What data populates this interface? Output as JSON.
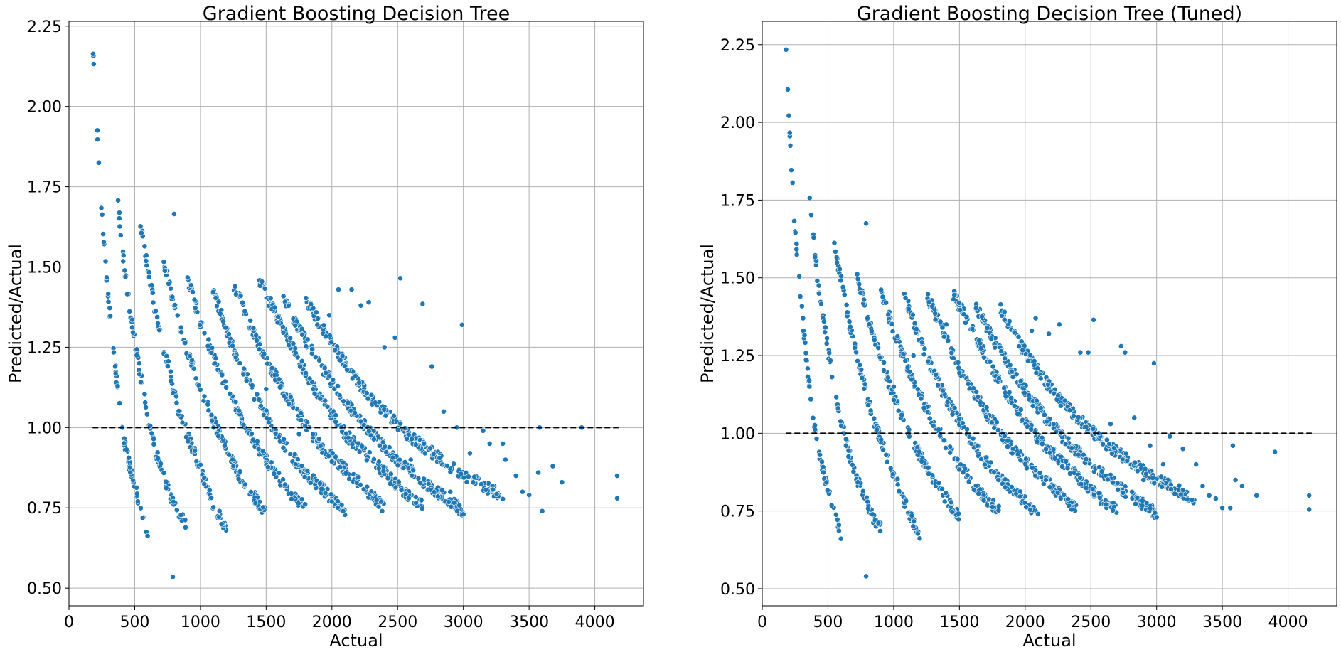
{
  "colors": {
    "point": "#1f77b4",
    "point_edge": "#ffffff",
    "grid": "#b0b0b0",
    "reference_line": "#000000"
  },
  "chart_data": [
    {
      "type": "scatter",
      "title": "Gradient Boosting Decision Tree",
      "xlabel": "Actual",
      "ylabel": "Predicted/Actual",
      "xlim": [
        0,
        4370
      ],
      "ylim": [
        0.445,
        2.265
      ],
      "xticks": [
        0,
        500,
        1000,
        1500,
        2000,
        2500,
        3000,
        3500,
        4000
      ],
      "xtick_labels": [
        "0",
        "500",
        "1000",
        "1500",
        "2000",
        "2500",
        "3000",
        "3500",
        "4000"
      ],
      "yticks": [
        0.5,
        0.75,
        1.0,
        1.25,
        1.5,
        1.75,
        2.0,
        2.25
      ],
      "ytick_labels": [
        "0.50",
        "0.75",
        "1.00",
        "1.25",
        "1.50",
        "1.75",
        "2.00",
        "2.25"
      ],
      "grid": true,
      "reference_line": {
        "style": "dashed",
        "x": [
          180,
          4180
        ],
        "y": [
          1.0,
          1.0
        ]
      },
      "bands": [
        {
          "x": [
            180,
            205,
            230,
            260,
            300,
            350,
            400,
            450,
            500,
            550,
            600
          ],
          "y": [
            2.2,
            2.0,
            1.8,
            1.6,
            1.4,
            1.2,
            1.0,
            0.9,
            0.82,
            0.73,
            0.66
          ]
        },
        {
          "x": [
            360,
            390,
            420,
            460,
            500,
            550,
            600,
            650,
            700,
            750,
            800,
            850,
            900
          ],
          "y": [
            1.77,
            1.62,
            1.5,
            1.38,
            1.27,
            1.15,
            1.03,
            0.94,
            0.87,
            0.81,
            0.76,
            0.72,
            0.7
          ]
        },
        {
          "x": [
            540,
            600,
            650,
            700,
            750,
            800,
            850,
            900,
            1000,
            1100,
            1200
          ],
          "y": [
            1.64,
            1.5,
            1.38,
            1.28,
            1.2,
            1.11,
            1.03,
            0.98,
            0.87,
            0.76,
            0.68
          ]
        },
        {
          "x": [
            720,
            800,
            900,
            1000,
            1100,
            1200,
            1300,
            1400,
            1500
          ],
          "y": [
            1.52,
            1.38,
            1.24,
            1.12,
            1.02,
            0.93,
            0.85,
            0.79,
            0.73
          ]
        },
        {
          "x": [
            900,
            1000,
            1100,
            1200,
            1300,
            1400,
            1500,
            1600,
            1700,
            1800
          ],
          "y": [
            1.47,
            1.33,
            1.22,
            1.12,
            1.04,
            0.96,
            0.9,
            0.84,
            0.79,
            0.75
          ]
        },
        {
          "x": [
            1080,
            1200,
            1300,
            1400,
            1500,
            1600,
            1700,
            1800,
            1900,
            2000,
            2100
          ],
          "y": [
            1.45,
            1.3,
            1.2,
            1.11,
            1.04,
            0.97,
            0.91,
            0.86,
            0.82,
            0.78,
            0.74
          ]
        },
        {
          "x": [
            1250,
            1400,
            1500,
            1600,
            1700,
            1800,
            1900,
            2000,
            2100,
            2200,
            2300,
            2400
          ],
          "y": [
            1.45,
            1.3,
            1.21,
            1.14,
            1.07,
            1.01,
            0.95,
            0.91,
            0.87,
            0.83,
            0.79,
            0.75
          ]
        },
        {
          "x": [
            1450,
            1600,
            1700,
            1800,
            1900,
            2000,
            2100,
            2200,
            2300,
            2400,
            2500,
            2600,
            2700
          ],
          "y": [
            1.46,
            1.33,
            1.25,
            1.17,
            1.1,
            1.04,
            0.98,
            0.94,
            0.9,
            0.86,
            0.82,
            0.78,
            0.76
          ]
        },
        {
          "x": [
            1620,
            1800,
            1900,
            2000,
            2100,
            2200,
            2300,
            2400,
            2500,
            2600,
            2700,
            2800,
            2900,
            3000
          ],
          "y": [
            1.41,
            1.27,
            1.2,
            1.14,
            1.08,
            1.03,
            0.98,
            0.94,
            0.9,
            0.87,
            0.83,
            0.8,
            0.77,
            0.74
          ]
        },
        {
          "x": [
            1800,
            1900,
            2000,
            2100,
            2200,
            2300,
            2400,
            2500,
            2600,
            2700,
            2800,
            2900,
            3000,
            3100,
            3200,
            3300
          ],
          "y": [
            1.4,
            1.33,
            1.26,
            1.2,
            1.14,
            1.09,
            1.05,
            1.01,
            0.97,
            0.94,
            0.91,
            0.88,
            0.85,
            0.83,
            0.81,
            0.79
          ]
        }
      ],
      "scatter_points": {
        "x": [
          800,
          790,
          2520,
          2690,
          2990,
          3580,
          3900,
          4170,
          4170,
          3750,
          3680,
          3570,
          3450,
          3320,
          3200,
          3150,
          3050,
          2950,
          2850,
          2760,
          2480,
          2400,
          2280,
          2220,
          2150,
          2050,
          1980,
          1750,
          1500,
          1300,
          1100,
          3400,
          3500,
          3300,
          3600,
          2900,
          2700,
          2600,
          3000
        ],
        "y": [
          1.665,
          0.535,
          1.465,
          1.385,
          1.32,
          1.0,
          1.0,
          0.85,
          0.78,
          0.83,
          0.88,
          0.86,
          0.8,
          0.9,
          0.95,
          0.99,
          0.92,
          1.0,
          1.05,
          1.19,
          1.28,
          1.25,
          1.39,
          1.38,
          1.43,
          1.43,
          1.35,
          0.98,
          1.12,
          1.2,
          1.0,
          0.85,
          0.79,
          0.95,
          0.74,
          0.8,
          0.95,
          0.9,
          0.73
        ]
      }
    },
    {
      "type": "scatter",
      "title": "Gradient Boosting Decision Tree (Tuned)",
      "xlabel": "Actual",
      "ylabel": "Predicted/Actual",
      "xlim": [
        0,
        4370
      ],
      "ylim": [
        0.445,
        2.325
      ],
      "xticks": [
        0,
        500,
        1000,
        1500,
        2000,
        2500,
        3000,
        3500,
        4000
      ],
      "xtick_labels": [
        "0",
        "500",
        "1000",
        "1500",
        "2000",
        "2500",
        "3000",
        "3500",
        "4000"
      ],
      "yticks": [
        0.5,
        0.75,
        1.0,
        1.25,
        1.5,
        1.75,
        2.0,
        2.25
      ],
      "ytick_labels": [
        "0.50",
        "0.75",
        "1.00",
        "1.25",
        "1.50",
        "1.75",
        "2.00",
        "2.25"
      ],
      "grid": true,
      "reference_line": {
        "style": "dashed",
        "x": [
          180,
          4180
        ],
        "y": [
          1.0,
          1.0
        ]
      },
      "bands": [
        {
          "x": [
            180,
            200,
            220,
            250,
            290,
            340,
            400,
            450,
            500,
            550,
            600
          ],
          "y": [
            2.24,
            2.05,
            1.87,
            1.65,
            1.45,
            1.22,
            1.01,
            0.9,
            0.82,
            0.74,
            0.67
          ]
        },
        {
          "x": [
            360,
            390,
            420,
            460,
            500,
            550,
            600,
            650,
            700,
            750,
            800,
            850,
            900
          ],
          "y": [
            1.77,
            1.63,
            1.5,
            1.38,
            1.27,
            1.15,
            1.04,
            0.95,
            0.88,
            0.82,
            0.77,
            0.72,
            0.7
          ]
        },
        {
          "x": [
            540,
            600,
            650,
            700,
            750,
            800,
            850,
            900,
            1000,
            1100,
            1200
          ],
          "y": [
            1.63,
            1.49,
            1.38,
            1.28,
            1.2,
            1.11,
            1.04,
            0.98,
            0.87,
            0.76,
            0.67
          ]
        },
        {
          "x": [
            720,
            800,
            900,
            1000,
            1100,
            1200,
            1300,
            1400,
            1500
          ],
          "y": [
            1.51,
            1.38,
            1.24,
            1.12,
            1.02,
            0.93,
            0.85,
            0.79,
            0.73
          ]
        },
        {
          "x": [
            900,
            1000,
            1100,
            1200,
            1300,
            1400,
            1500,
            1600,
            1700,
            1800
          ],
          "y": [
            1.46,
            1.33,
            1.22,
            1.12,
            1.04,
            0.96,
            0.9,
            0.84,
            0.79,
            0.75
          ]
        },
        {
          "x": [
            1080,
            1200,
            1300,
            1400,
            1500,
            1600,
            1700,
            1800,
            1900,
            2000,
            2100
          ],
          "y": [
            1.45,
            1.3,
            1.2,
            1.11,
            1.04,
            0.97,
            0.91,
            0.86,
            0.82,
            0.78,
            0.74
          ]
        },
        {
          "x": [
            1250,
            1400,
            1500,
            1600,
            1700,
            1800,
            1900,
            2000,
            2100,
            2200,
            2300,
            2400
          ],
          "y": [
            1.45,
            1.3,
            1.21,
            1.14,
            1.07,
            1.01,
            0.95,
            0.91,
            0.87,
            0.83,
            0.79,
            0.75
          ]
        },
        {
          "x": [
            1450,
            1600,
            1700,
            1800,
            1900,
            2000,
            2100,
            2200,
            2300,
            2400,
            2500,
            2600,
            2700
          ],
          "y": [
            1.45,
            1.33,
            1.25,
            1.17,
            1.1,
            1.04,
            0.98,
            0.94,
            0.9,
            0.86,
            0.82,
            0.78,
            0.76
          ]
        },
        {
          "x": [
            1620,
            1800,
            1900,
            2000,
            2100,
            2200,
            2300,
            2400,
            2500,
            2600,
            2700,
            2800,
            2900,
            3000
          ],
          "y": [
            1.41,
            1.27,
            1.2,
            1.14,
            1.08,
            1.03,
            0.98,
            0.94,
            0.9,
            0.87,
            0.83,
            0.8,
            0.77,
            0.74
          ]
        },
        {
          "x": [
            1800,
            1900,
            2000,
            2100,
            2200,
            2300,
            2400,
            2500,
            2600,
            2700,
            2800,
            2900,
            3000,
            3100,
            3200,
            3300
          ],
          "y": [
            1.41,
            1.33,
            1.26,
            1.2,
            1.14,
            1.09,
            1.05,
            1.01,
            0.97,
            0.94,
            0.91,
            0.88,
            0.85,
            0.83,
            0.81,
            0.78
          ]
        }
      ],
      "scatter_points": {
        "x": [
          790,
          790,
          2520,
          2730,
          2980,
          3580,
          3900,
          4160,
          4160,
          3760,
          3650,
          3560,
          3450,
          3350,
          3200,
          3100,
          3050,
          2950,
          2830,
          2760,
          2480,
          2420,
          2260,
          2180,
          2080,
          2050,
          1950,
          1400,
          1150,
          1000,
          3400,
          3500,
          3300,
          3600,
          2900,
          2650,
          2560,
          3000
        ],
        "y": [
          1.675,
          0.54,
          1.365,
          1.28,
          1.225,
          0.96,
          0.94,
          0.8,
          0.755,
          0.8,
          0.83,
          0.76,
          0.79,
          0.83,
          0.95,
          0.99,
          0.9,
          0.96,
          1.05,
          1.26,
          1.26,
          1.26,
          1.35,
          1.32,
          1.37,
          1.33,
          1.31,
          1.35,
          1.25,
          1.15,
          0.8,
          0.76,
          0.9,
          0.85,
          0.85,
          1.03,
          1.0,
          0.73
        ]
      }
    }
  ]
}
